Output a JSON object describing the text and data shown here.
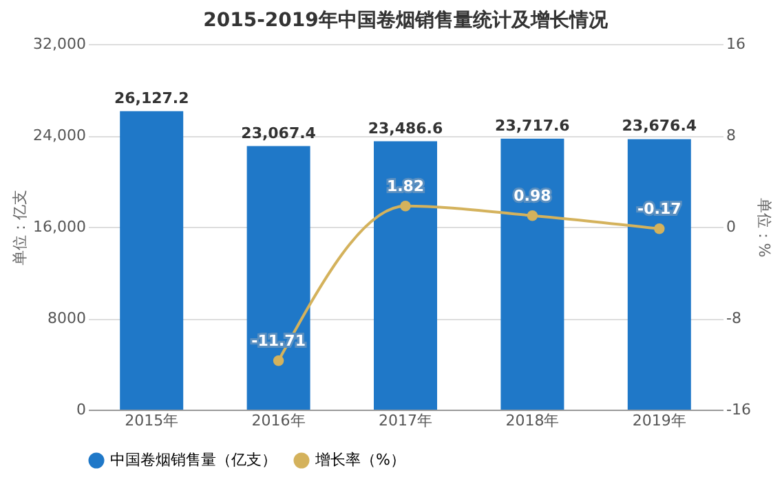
{
  "chart_data": {
    "type": "bar",
    "title": "2015-2019年中国卷烟销售量统计及增长情况",
    "ylabel": "单位：亿支",
    "y2label": "单位：%",
    "categories": [
      "2015年",
      "2016年",
      "2017年",
      "2018年",
      "2019年"
    ],
    "series": [
      {
        "name": "中国卷烟销售量（亿支）",
        "color": "#1f78c8",
        "values": [
          26127.2,
          23067.4,
          23486.6,
          23717.6,
          23676.4
        ],
        "value_labels": [
          "26,127.2",
          "23,067.4",
          "23,486.6",
          "23,717.6",
          "23,676.4"
        ]
      },
      {
        "name": "增长率（%）",
        "type": "line",
        "axis": "y2",
        "color": "#d4b25c",
        "values": [
          null,
          -11.71,
          1.82,
          0.98,
          -0.17
        ],
        "data_labels": true
      }
    ],
    "ylim": [
      0,
      32000
    ],
    "yticks": [
      0,
      8000,
      {
        "value": 16000,
        "label": "16,000"
      },
      {
        "value": 24000,
        "label": "24,000"
      },
      {
        "value": 32000,
        "label": "32,000"
      }
    ],
    "y2lim": [
      -16,
      16
    ],
    "y2ticks": [
      -16,
      -8,
      0,
      8,
      16
    ],
    "grid": "y",
    "legend": "bottom",
    "marker": "circle"
  }
}
